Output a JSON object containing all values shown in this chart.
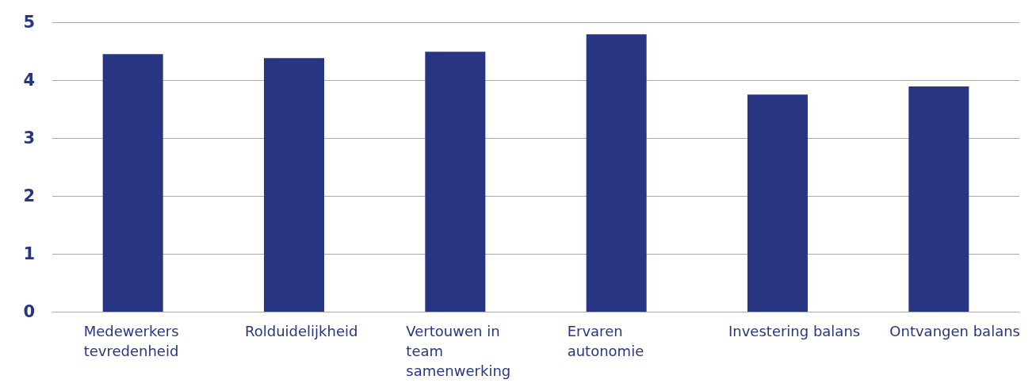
{
  "chart_data": {
    "type": "bar",
    "categories": [
      "Medewerkers tevredenheid",
      "Rolduidelijkheid",
      "Vertouwen in team samenwerking",
      "Ervaren autonomie",
      "Investering balans",
      "Ontvangen balans"
    ],
    "values": [
      4.45,
      4.38,
      4.49,
      4.79,
      3.75,
      3.89
    ],
    "color": "#283583",
    "ylim": [
      0,
      5
    ],
    "yticks": [
      0,
      1,
      2,
      3,
      4,
      5
    ],
    "grid": "y"
  }
}
